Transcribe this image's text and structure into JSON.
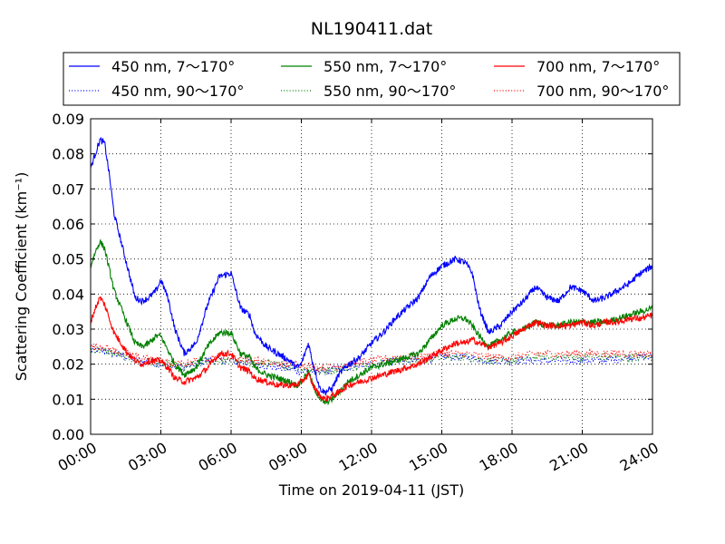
{
  "chart_data": {
    "type": "line",
    "title": "NL190411.dat",
    "xlabel": "Time on 2019-04-11 (JST)",
    "ylabel": "Scattering Coefficient (km⁻¹)",
    "xlim": [
      0,
      24
    ],
    "ylim": [
      0,
      0.09
    ],
    "x_tick_labels": [
      "00:00",
      "03:00",
      "06:00",
      "09:00",
      "12:00",
      "15:00",
      "18:00",
      "21:00",
      "24:00"
    ],
    "y_tick_labels": [
      "0.00",
      "0.01",
      "0.02",
      "0.03",
      "0.04",
      "0.05",
      "0.06",
      "0.07",
      "0.08",
      "0.09"
    ],
    "grid": true,
    "legend_position": "top",
    "series": [
      {
        "name": "450 nm, 7～170°",
        "color": "#0000ff",
        "style": "solid",
        "x": [
          0,
          0.2,
          0.4,
          0.6,
          0.8,
          1.0,
          1.3,
          1.6,
          1.9,
          2.2,
          2.5,
          2.8,
          3.0,
          3.3,
          3.6,
          4.0,
          4.5,
          5.0,
          5.5,
          6.0,
          6.4,
          6.8,
          7.0,
          7.5,
          8.0,
          8.5,
          8.8,
          9.0,
          9.3,
          9.5,
          9.8,
          10.0,
          10.3,
          10.6,
          11.0,
          11.5,
          12.0,
          12.5,
          13.0,
          13.5,
          14.0,
          14.5,
          15.0,
          15.3,
          15.6,
          16.0,
          16.3,
          16.6,
          17.0,
          17.5,
          18.0,
          18.5,
          19.0,
          19.5,
          20.0,
          20.5,
          21.0,
          21.5,
          22.0,
          22.5,
          23.0,
          23.5,
          24.0
        ],
        "y": [
          0.076,
          0.08,
          0.084,
          0.083,
          0.074,
          0.063,
          0.055,
          0.047,
          0.039,
          0.038,
          0.039,
          0.041,
          0.044,
          0.039,
          0.03,
          0.023,
          0.026,
          0.037,
          0.045,
          0.046,
          0.036,
          0.034,
          0.029,
          0.025,
          0.023,
          0.021,
          0.019,
          0.02,
          0.026,
          0.02,
          0.013,
          0.012,
          0.013,
          0.017,
          0.02,
          0.022,
          0.026,
          0.029,
          0.033,
          0.036,
          0.039,
          0.045,
          0.048,
          0.049,
          0.05,
          0.049,
          0.046,
          0.036,
          0.029,
          0.031,
          0.035,
          0.038,
          0.042,
          0.039,
          0.038,
          0.042,
          0.041,
          0.038,
          0.039,
          0.041,
          0.043,
          0.046,
          0.048
        ]
      },
      {
        "name": "450 nm, 90～170°",
        "color": "#0000ff",
        "style": "dotted",
        "x": [
          0,
          0.5,
          1.0,
          2.0,
          3.0,
          3.5,
          4.0,
          5.0,
          6.0,
          7.0,
          8.0,
          9.0,
          9.7,
          10.0,
          11.0,
          12.0,
          13.0,
          14.0,
          15.0,
          16.0,
          17.0,
          18.0,
          19.0,
          20.0,
          21.0,
          22.0,
          23.0,
          24.0
        ],
        "y": [
          0.024,
          0.024,
          0.023,
          0.021,
          0.02,
          0.019,
          0.019,
          0.021,
          0.021,
          0.02,
          0.019,
          0.018,
          0.018,
          0.018,
          0.019,
          0.02,
          0.021,
          0.021,
          0.022,
          0.022,
          0.021,
          0.021,
          0.021,
          0.021,
          0.021,
          0.021,
          0.022,
          0.022
        ]
      },
      {
        "name": "550 nm, 7～170°",
        "color": "#008000",
        "style": "solid",
        "x": [
          0,
          0.2,
          0.4,
          0.6,
          0.8,
          1.0,
          1.3,
          1.6,
          1.9,
          2.2,
          2.5,
          2.8,
          3.0,
          3.3,
          3.6,
          4.0,
          4.5,
          5.0,
          5.5,
          6.0,
          6.4,
          6.8,
          7.0,
          7.5,
          8.0,
          8.5,
          8.8,
          9.0,
          9.3,
          9.5,
          9.8,
          10.0,
          10.3,
          10.6,
          11.0,
          11.5,
          12.0,
          12.5,
          13.0,
          13.5,
          14.0,
          14.5,
          15.0,
          15.3,
          15.6,
          16.0,
          16.3,
          16.6,
          17.0,
          17.5,
          18.0,
          18.5,
          19.0,
          19.5,
          20.0,
          20.5,
          21.0,
          21.5,
          22.0,
          22.5,
          23.0,
          23.5,
          24.0
        ],
        "y": [
          0.048,
          0.052,
          0.055,
          0.053,
          0.047,
          0.041,
          0.036,
          0.031,
          0.026,
          0.025,
          0.026,
          0.028,
          0.028,
          0.024,
          0.02,
          0.017,
          0.019,
          0.025,
          0.029,
          0.029,
          0.023,
          0.022,
          0.019,
          0.017,
          0.016,
          0.015,
          0.014,
          0.015,
          0.018,
          0.014,
          0.01,
          0.009,
          0.01,
          0.012,
          0.015,
          0.017,
          0.019,
          0.02,
          0.021,
          0.022,
          0.023,
          0.027,
          0.031,
          0.032,
          0.033,
          0.033,
          0.031,
          0.028,
          0.025,
          0.027,
          0.029,
          0.03,
          0.032,
          0.031,
          0.031,
          0.032,
          0.032,
          0.032,
          0.032,
          0.033,
          0.034,
          0.035,
          0.036
        ]
      },
      {
        "name": "550 nm, 90～170°",
        "color": "#008000",
        "style": "dotted",
        "x": [
          0,
          0.5,
          1.0,
          2.0,
          3.0,
          3.5,
          4.0,
          5.0,
          6.0,
          7.0,
          8.0,
          9.0,
          9.7,
          10.0,
          11.0,
          12.0,
          13.0,
          14.0,
          15.0,
          16.0,
          17.0,
          18.0,
          19.0,
          20.0,
          21.0,
          22.0,
          23.0,
          24.0
        ],
        "y": [
          0.024,
          0.024,
          0.023,
          0.021,
          0.02,
          0.02,
          0.019,
          0.021,
          0.021,
          0.02,
          0.02,
          0.019,
          0.018,
          0.018,
          0.019,
          0.02,
          0.021,
          0.021,
          0.022,
          0.022,
          0.021,
          0.021,
          0.022,
          0.022,
          0.022,
          0.022,
          0.022,
          0.022
        ]
      },
      {
        "name": "700 nm, 7～170°",
        "color": "#ff0000",
        "style": "solid",
        "x": [
          0,
          0.2,
          0.4,
          0.6,
          0.8,
          1.0,
          1.3,
          1.6,
          1.9,
          2.2,
          2.5,
          2.8,
          3.0,
          3.3,
          3.6,
          4.0,
          4.5,
          5.0,
          5.5,
          6.0,
          6.4,
          6.8,
          7.0,
          7.5,
          8.0,
          8.5,
          8.8,
          9.0,
          9.3,
          9.5,
          9.8,
          10.0,
          10.3,
          10.6,
          11.0,
          11.5,
          12.0,
          12.5,
          13.0,
          13.5,
          14.0,
          14.5,
          15.0,
          15.3,
          15.6,
          16.0,
          16.3,
          16.6,
          17.0,
          17.5,
          18.0,
          18.5,
          19.0,
          19.5,
          20.0,
          20.5,
          21.0,
          21.5,
          22.0,
          22.5,
          23.0,
          23.5,
          24.0
        ],
        "y": [
          0.032,
          0.036,
          0.039,
          0.037,
          0.033,
          0.029,
          0.026,
          0.023,
          0.021,
          0.02,
          0.021,
          0.021,
          0.021,
          0.019,
          0.016,
          0.015,
          0.016,
          0.019,
          0.023,
          0.023,
          0.019,
          0.018,
          0.016,
          0.015,
          0.014,
          0.014,
          0.014,
          0.015,
          0.017,
          0.014,
          0.011,
          0.01,
          0.011,
          0.012,
          0.014,
          0.015,
          0.016,
          0.017,
          0.018,
          0.019,
          0.02,
          0.022,
          0.024,
          0.025,
          0.026,
          0.026,
          0.027,
          0.026,
          0.025,
          0.026,
          0.028,
          0.03,
          0.032,
          0.031,
          0.031,
          0.031,
          0.032,
          0.031,
          0.032,
          0.032,
          0.033,
          0.033,
          0.034
        ]
      },
      {
        "name": "700 nm, 90～170°",
        "color": "#ff0000",
        "style": "dotted",
        "x": [
          0,
          0.5,
          1.0,
          2.0,
          3.0,
          3.5,
          4.0,
          5.0,
          6.0,
          7.0,
          8.0,
          9.0,
          9.7,
          10.0,
          11.0,
          12.0,
          13.0,
          14.0,
          15.0,
          16.0,
          17.0,
          18.0,
          19.0,
          20.0,
          21.0,
          22.0,
          23.0,
          24.0
        ],
        "y": [
          0.025,
          0.025,
          0.024,
          0.022,
          0.021,
          0.02,
          0.02,
          0.022,
          0.022,
          0.021,
          0.02,
          0.02,
          0.019,
          0.019,
          0.02,
          0.021,
          0.022,
          0.022,
          0.023,
          0.023,
          0.022,
          0.022,
          0.023,
          0.023,
          0.023,
          0.023,
          0.023,
          0.023
        ]
      }
    ]
  }
}
